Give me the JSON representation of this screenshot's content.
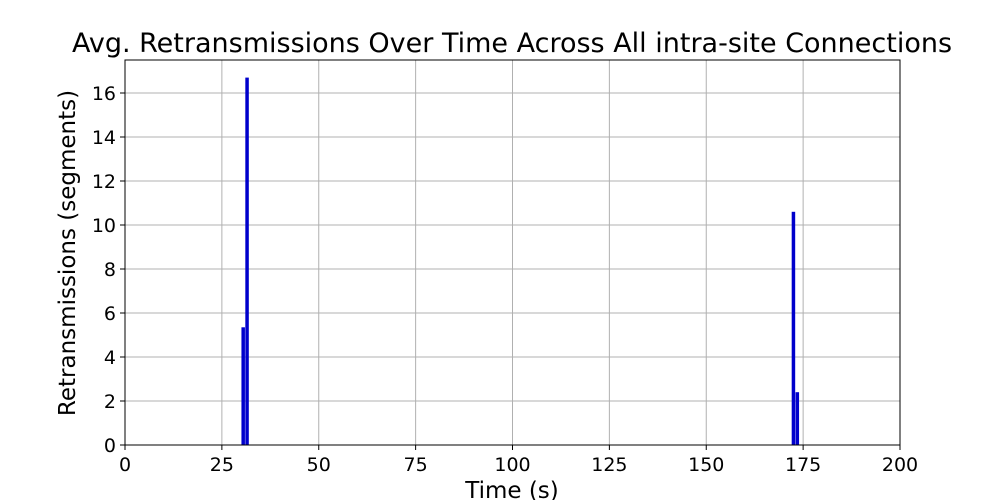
{
  "chart_data": {
    "type": "bar",
    "title": "Avg. Retransmissions Over Time Across All intra-site Connections",
    "xlabel": "Time (s)",
    "ylabel": "Retransmissions (segments)",
    "xlim": [
      0,
      200
    ],
    "ylim": [
      0,
      17.5
    ],
    "xticks": [
      0,
      25,
      50,
      75,
      100,
      125,
      150,
      175,
      200
    ],
    "yticks": [
      0,
      2,
      4,
      6,
      8,
      10,
      12,
      14,
      16
    ],
    "grid": true,
    "bar_color": "#0000cc",
    "x": [
      30.5,
      31.5,
      172.5,
      173.5
    ],
    "values": [
      5.35,
      16.7,
      10.6,
      2.4
    ]
  }
}
